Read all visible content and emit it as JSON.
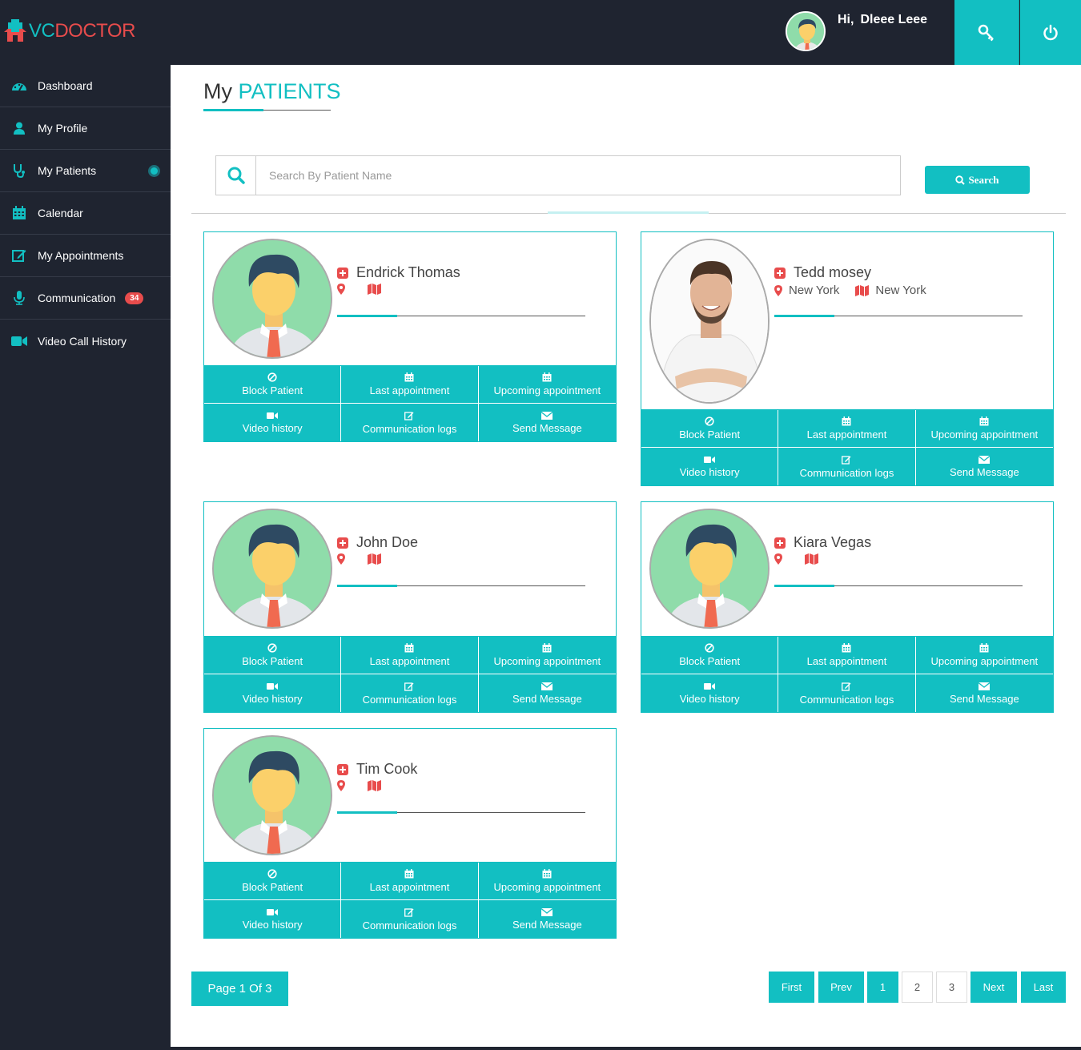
{
  "header": {
    "logo_vc": "VC",
    "logo_doctor": "DOCTOR",
    "greeting": "Hi,",
    "user_name": "Dleee Leee",
    "key_icon": "key-icon",
    "power_icon": "power-icon"
  },
  "sidebar": {
    "items": [
      {
        "label": "Dashboard",
        "icon": "dashboard-icon"
      },
      {
        "label": "My Profile",
        "icon": "user-icon"
      },
      {
        "label": "My Patients",
        "icon": "stethoscope-icon"
      },
      {
        "label": "Calendar",
        "icon": "calendar-icon"
      },
      {
        "label": "My Appointments",
        "icon": "edit-icon"
      },
      {
        "label": "Communication",
        "icon": "microphone-icon",
        "badge": "34"
      },
      {
        "label": "Video Call History",
        "icon": "video-icon"
      }
    ]
  },
  "page": {
    "title_prefix": "My",
    "title_highlight": "PATIENTS"
  },
  "search": {
    "placeholder": "Search By Patient Name",
    "button_label": "Search"
  },
  "actions": {
    "block": "Block Patient",
    "last": "Last appointment",
    "upcoming": "Upcoming appointment",
    "video": "Video history",
    "comm": "Communication logs",
    "message": "Send Message"
  },
  "patients": [
    {
      "name": "Endrick Thomas",
      "city": "",
      "state": ""
    },
    {
      "name": "Tedd mosey",
      "city": "New York",
      "state": "New York"
    },
    {
      "name": "John Doe",
      "city": "",
      "state": ""
    },
    {
      "name": "Kiara Vegas",
      "city": "",
      "state": ""
    },
    {
      "name": "Tim Cook",
      "city": "",
      "state": ""
    }
  ],
  "pagination": {
    "info": "Page 1 Of 3",
    "first": "First",
    "prev": "Prev",
    "pages": [
      "1",
      "2",
      "3"
    ],
    "next": "Next",
    "last": "Last",
    "current_page": 1
  },
  "colors": {
    "accent": "#12bfc2",
    "sidebar_bg": "#1f2430",
    "danger": "#e84c4c"
  }
}
